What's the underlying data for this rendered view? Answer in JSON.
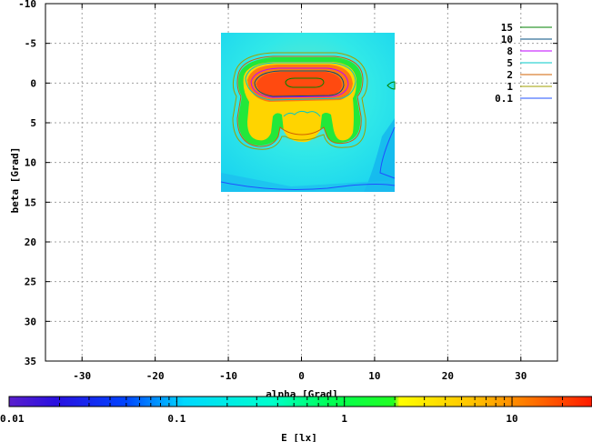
{
  "chart_data": {
    "type": "heatmap",
    "xlabel": "alpha [Grad]",
    "ylabel": "beta [Grad]",
    "xlim": [
      -35,
      35
    ],
    "ylim": [
      -10,
      35
    ],
    "y_inverted": true,
    "x_ticks": [
      -30,
      -20,
      -10,
      0,
      10,
      20,
      30
    ],
    "y_ticks": [
      -10,
      -5,
      0,
      5,
      10,
      15,
      20,
      25,
      30,
      35
    ],
    "grid": true,
    "data_extent": {
      "alpha": [
        -11,
        13
      ],
      "beta": [
        -6.2,
        13.8
      ]
    },
    "colorbar": {
      "label": "E [lx]",
      "scale": "log",
      "range": [
        0.01,
        30
      ],
      "ticks": [
        0.01,
        0.1,
        1,
        10
      ],
      "tick_labels": [
        "0.01",
        "0.1",
        "1",
        "10"
      ],
      "colors": [
        "#5a1fcc",
        "#0000ff",
        "#00ffff",
        "#00ff33",
        "#ffff00",
        "#ff1a00"
      ]
    },
    "contours": [
      {
        "level": "15",
        "color": "#008000"
      },
      {
        "level": "10",
        "color": "#004d80"
      },
      {
        "level": "8",
        "color": "#c000ff"
      },
      {
        "level": "5",
        "color": "#00c8c8"
      },
      {
        "level": "2",
        "color": "#d06000"
      },
      {
        "level": "1",
        "color": "#a0a000"
      },
      {
        "level": "0.1",
        "color": "#2050ff"
      }
    ]
  }
}
